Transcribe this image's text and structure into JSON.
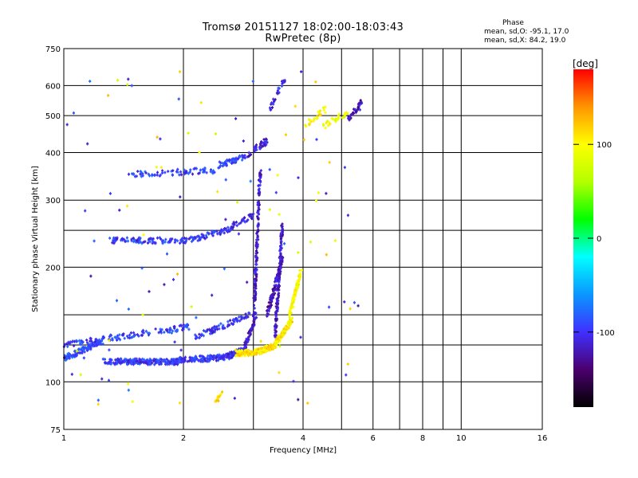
{
  "header": {
    "title_line1": "Tromsø 20151127 18:02:00-18:03:43",
    "title_line2": "RwPretec (8p)"
  },
  "phase_info": {
    "title": "Phase",
    "line1": "mean, sd,O: -95.1, 17.0",
    "line2": "mean, sd,X:  84.2, 19.0"
  },
  "colorbar": {
    "label": "[deg]",
    "range": [
      -180,
      180
    ],
    "ticks": [
      "100",
      "0",
      "-100"
    ],
    "tick_values": [
      100,
      0,
      -100
    ],
    "colormap": [
      "#000000",
      "#4b006e",
      "#3f30ff",
      "#0a96ff",
      "#00ffff",
      "#00ff00",
      "#b4ff00",
      "#ffff00",
      "#ff9600",
      "#ff0000"
    ]
  },
  "chart_data": {
    "type": "scatter",
    "title": "Tromsø 20151127 18:02:00-18:03:43",
    "subtitle": "RwPretec (8p)",
    "xlabel": "Frequency [MHz]",
    "ylabel": "Stationary phase Virtual Height [km]",
    "x_scale": "log",
    "y_scale": "log",
    "xlim": [
      1,
      16
    ],
    "ylim": [
      75,
      750
    ],
    "x_ticks": [
      "1",
      "2",
      "4",
      "6",
      "8",
      "10",
      "16"
    ],
    "x_tick_values": [
      1,
      2,
      4,
      6,
      8,
      10,
      16
    ],
    "y_ticks": [
      "75",
      "100",
      "200",
      "300",
      "400",
      "500",
      "600",
      "750"
    ],
    "y_tick_values": [
      75,
      100,
      200,
      300,
      400,
      500,
      600,
      750
    ],
    "x_gridlines": [
      1,
      2,
      3,
      4,
      5,
      6,
      7,
      8,
      9,
      10,
      16
    ],
    "y_gridlines": [
      75,
      100,
      125,
      150,
      200,
      250,
      300,
      400,
      500,
      600,
      750
    ],
    "grid": true,
    "color_encoding": "phase_deg",
    "series": [
      {
        "segments": [
          [
            1.0,
            1.25,
            115,
            128,
            -90,
            120
          ],
          [
            1.25,
            1.95,
            113,
            113,
            -100,
            200
          ],
          [
            1.95,
            2.55,
            114,
            116,
            -100,
            130
          ],
          [
            2.55,
            2.85,
            116,
            122,
            -105,
            90
          ],
          [
            2.85,
            3.05,
            122,
            150,
            -115,
            60
          ]
        ]
      },
      {
        "segments": [
          [
            2.7,
            3.0,
            119,
            119,
            110,
            70
          ],
          [
            3.0,
            3.4,
            119,
            124,
            110,
            110
          ],
          [
            3.4,
            3.75,
            125,
            145,
            105,
            110
          ],
          [
            3.7,
            3.95,
            150,
            195,
            100,
            90
          ]
        ]
      },
      {
        "segments": [
          [
            1.0,
            2.1,
            125,
            140,
            -95,
            120
          ],
          [
            2.1,
            2.95,
            130,
            150,
            -100,
            80
          ]
        ]
      },
      {
        "segments": [
          [
            3.0,
            3.12,
            140,
            360,
            -115,
            160
          ],
          [
            3.4,
            3.55,
            130,
            260,
            -115,
            140
          ],
          [
            3.25,
            3.55,
            150,
            210,
            -120,
            90
          ]
        ]
      },
      {
        "segments": [
          [
            1.3,
            2.1,
            235,
            235,
            -95,
            90
          ],
          [
            2.1,
            2.55,
            236,
            250,
            -95,
            50
          ],
          [
            2.55,
            3.0,
            250,
            275,
            -105,
            50
          ],
          [
            1.45,
            2.45,
            350,
            360,
            -95,
            70
          ],
          [
            2.45,
            2.85,
            370,
            390,
            -95,
            50
          ],
          [
            2.85,
            3.25,
            390,
            430,
            -110,
            40
          ],
          [
            3.3,
            3.6,
            520,
            620,
            -110,
            25
          ]
        ]
      },
      {
        "segments": [
          [
            4.05,
            4.55,
            470,
            520,
            100,
            25
          ],
          [
            4.5,
            5.2,
            470,
            510,
            90,
            30
          ],
          [
            5.2,
            5.6,
            490,
            540,
            -120,
            35
          ]
        ]
      },
      {
        "segments": [
          [
            2.4,
            2.5,
            88,
            93,
            115,
            14
          ]
        ]
      }
    ]
  }
}
